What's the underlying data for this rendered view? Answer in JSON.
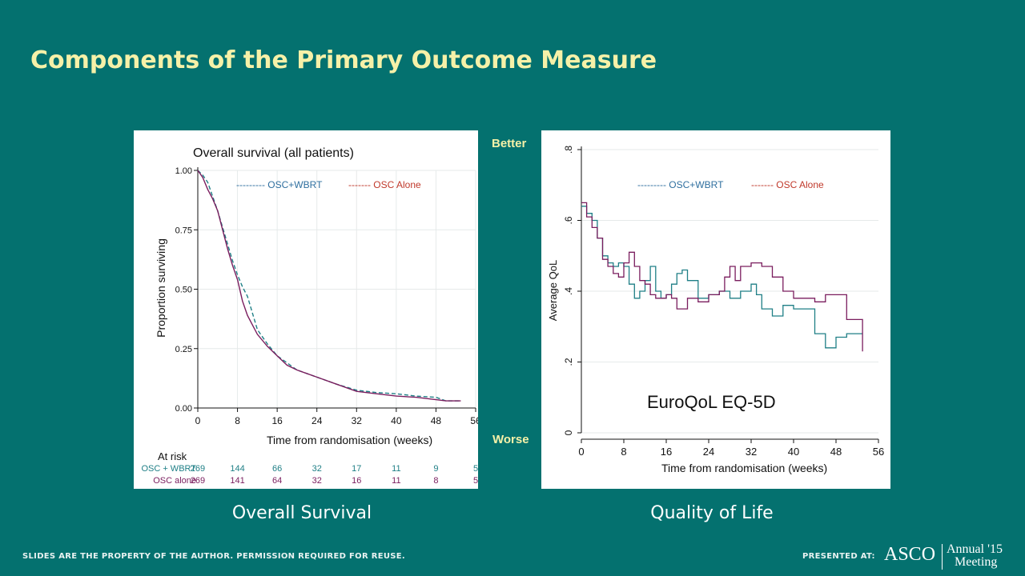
{
  "slide": {
    "title": "Components of the Primary Outcome Measure",
    "caption_left": "Overall Survival",
    "caption_right": "Quality of Life",
    "better_label": "Better",
    "worse_label": "Worse",
    "footer_left": "SLIDES ARE THE PROPERTY OF THE AUTHOR. PERMISSION REQUIRED FOR REUSE.",
    "footer_presented": "PRESENTED AT:",
    "logo_text": "ASCO",
    "annual_line1": "Annual '15",
    "annual_line2": "Meeting",
    "colors": {
      "background": "#04716f",
      "title": "#f6f1a8",
      "teal_series": "#1f7f86",
      "purple_series": "#7a1d5e",
      "legend_red": "#c0392b",
      "legend_blue": "#2f6f9f"
    }
  },
  "chart_data": [
    {
      "type": "line",
      "title": "Overall survival (all patients)",
      "xlabel": "Time from randomisation (weeks)",
      "ylabel": "Proportion surviving",
      "xlim": [
        0,
        56
      ],
      "ylim": [
        0,
        1
      ],
      "x_ticks": [
        "0",
        "8",
        "16",
        "24",
        "32",
        "40",
        "48",
        "56"
      ],
      "y_ticks": [
        "0.00",
        "0.25",
        "0.50",
        "0.75",
        "1.00"
      ],
      "grid": true,
      "legend": [
        "--------- OSC+WBRT",
        "------- OSC Alone"
      ],
      "series": [
        {
          "name": "OSC+WBRT",
          "style": "dashed",
          "color": "#1f7f86",
          "x": [
            0,
            1,
            2,
            3,
            4,
            5,
            6,
            7,
            8,
            9,
            10,
            11,
            12,
            14,
            16,
            18,
            20,
            24,
            28,
            32,
            36,
            40,
            44,
            48,
            50,
            53
          ],
          "y": [
            1.0,
            0.98,
            0.95,
            0.89,
            0.83,
            0.76,
            0.69,
            0.62,
            0.56,
            0.51,
            0.47,
            0.4,
            0.33,
            0.27,
            0.22,
            0.19,
            0.16,
            0.13,
            0.1,
            0.075,
            0.065,
            0.06,
            0.05,
            0.045,
            0.03,
            0.03
          ]
        },
        {
          "name": "OSC Alone",
          "style": "solid",
          "color": "#7a1d5e",
          "x": [
            0,
            1,
            2,
            3,
            4,
            5,
            6,
            7,
            8,
            9,
            10,
            11,
            12,
            14,
            16,
            18,
            20,
            24,
            28,
            32,
            36,
            40,
            44,
            48,
            50,
            53
          ],
          "y": [
            1.0,
            0.97,
            0.92,
            0.88,
            0.83,
            0.75,
            0.67,
            0.6,
            0.54,
            0.45,
            0.39,
            0.35,
            0.31,
            0.26,
            0.22,
            0.18,
            0.16,
            0.13,
            0.1,
            0.07,
            0.06,
            0.05,
            0.045,
            0.035,
            0.03,
            0.03
          ]
        }
      ],
      "at_risk": {
        "label": "At risk",
        "rows": [
          {
            "group": "OSC + WBRT",
            "color": "#1f7f86",
            "counts": [
              "269",
              "144",
              "66",
              "32",
              "17",
              "11",
              "9",
              "5"
            ]
          },
          {
            "group": "OSC alone",
            "color": "#7a1d5e",
            "counts": [
              "269",
              "141",
              "64",
              "32",
              "16",
              "11",
              "8",
              "5"
            ]
          }
        ]
      }
    },
    {
      "type": "line",
      "title": "",
      "xlabel": "Time from randomisation (weeks)",
      "ylabel": "Average QoL",
      "xlim": [
        0,
        56
      ],
      "ylim": [
        0,
        0.8
      ],
      "x_ticks": [
        "0",
        "8",
        "16",
        "24",
        "32",
        "40",
        "48",
        "56"
      ],
      "y_ticks": [
        "0",
        ".2",
        ".4",
        ".6",
        ".8"
      ],
      "grid": true,
      "legend": [
        "--------- OSC+WBRT",
        "------- OSC Alone"
      ],
      "annotation": "EuroQoL EQ-5D",
      "series": [
        {
          "name": "OSC+WBRT",
          "style": "step",
          "color": "#1f7f86",
          "x": [
            0,
            1,
            2,
            3,
            4,
            5,
            6,
            7,
            8,
            9,
            10,
            11,
            12,
            13,
            14,
            15,
            16,
            17,
            18,
            19,
            20,
            22,
            24,
            26,
            28,
            30,
            32,
            33,
            34,
            36,
            38,
            40,
            42,
            44,
            46,
            48,
            50,
            53
          ],
          "y": [
            0.64,
            0.62,
            0.6,
            0.55,
            0.5,
            0.48,
            0.47,
            0.48,
            0.47,
            0.42,
            0.38,
            0.4,
            0.43,
            0.47,
            0.4,
            0.38,
            0.39,
            0.42,
            0.45,
            0.46,
            0.43,
            0.38,
            0.39,
            0.4,
            0.38,
            0.4,
            0.42,
            0.39,
            0.35,
            0.33,
            0.36,
            0.35,
            0.35,
            0.28,
            0.24,
            0.27,
            0.28,
            0.28
          ]
        },
        {
          "name": "OSC Alone",
          "style": "step",
          "color": "#7a1d5e",
          "x": [
            0,
            1,
            2,
            3,
            4,
            5,
            6,
            7,
            8,
            9,
            10,
            11,
            12,
            13,
            14,
            15,
            16,
            17,
            18,
            19,
            20,
            22,
            24,
            26,
            27,
            28,
            29,
            30,
            32,
            34,
            35,
            36,
            38,
            40,
            42,
            44,
            46,
            48,
            50,
            52,
            53
          ],
          "y": [
            0.65,
            0.61,
            0.58,
            0.55,
            0.49,
            0.47,
            0.45,
            0.44,
            0.48,
            0.51,
            0.47,
            0.43,
            0.42,
            0.39,
            0.38,
            0.38,
            0.39,
            0.38,
            0.35,
            0.35,
            0.38,
            0.37,
            0.39,
            0.4,
            0.44,
            0.47,
            0.43,
            0.47,
            0.48,
            0.47,
            0.47,
            0.44,
            0.4,
            0.38,
            0.38,
            0.37,
            0.39,
            0.39,
            0.32,
            0.32,
            0.23
          ]
        }
      ]
    }
  ]
}
